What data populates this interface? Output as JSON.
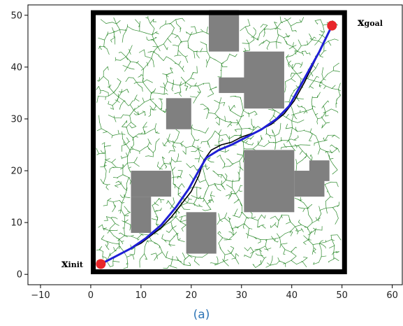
{
  "chart_data": {
    "type": "scatter",
    "title": "",
    "xlabel": "",
    "ylabel": "",
    "xlim": [
      -12.5,
      62
    ],
    "ylim": [
      -2,
      52
    ],
    "xticks": [
      -10,
      0,
      10,
      20,
      30,
      40,
      50,
      60
    ],
    "yticks": [
      0,
      10,
      20,
      30,
      40,
      50
    ],
    "boundary": {
      "x0": 0.5,
      "y0": 0.5,
      "x1": 50.5,
      "y1": 50.5
    },
    "obstacles": [
      {
        "x0": 23.5,
        "y0": 43,
        "x1": 29.5,
        "y1": 51
      },
      {
        "x0": 30.5,
        "y0": 32,
        "x1": 38.5,
        "y1": 43
      },
      {
        "x0": 25.5,
        "y0": 35,
        "x1": 31,
        "y1": 38
      },
      {
        "x0": 15,
        "y0": 28,
        "x1": 20,
        "y1": 34
      },
      {
        "x0": 8,
        "y0": 15,
        "x1": 16,
        "y1": 20
      },
      {
        "x0": 8,
        "y0": 8,
        "x1": 12,
        "y1": 15
      },
      {
        "x0": 30.5,
        "y0": 12,
        "x1": 40.5,
        "y1": 24
      },
      {
        "x0": 40.5,
        "y0": 15,
        "x1": 46.5,
        "y1": 20
      },
      {
        "x0": 43.5,
        "y0": 18,
        "x1": 47.5,
        "y1": 22
      },
      {
        "x0": 19,
        "y0": 4,
        "x1": 25,
        "y1": 12
      }
    ],
    "start": {
      "label_main": "x",
      "label_sub": "init",
      "x": 2,
      "y": 2
    },
    "goal": {
      "label_main": "x",
      "label_sub": "goal",
      "x": 48,
      "y": 48
    },
    "tree_path": [
      [
        2,
        2
      ],
      [
        6,
        4
      ],
      [
        10,
        6
      ],
      [
        12,
        7.5
      ],
      [
        14,
        9
      ],
      [
        16,
        11
      ],
      [
        18,
        13.5
      ],
      [
        20,
        16
      ],
      [
        21.5,
        19
      ],
      [
        22.5,
        22
      ],
      [
        24,
        24
      ],
      [
        26,
        25
      ],
      [
        28,
        25.5
      ],
      [
        30,
        26.5
      ],
      [
        33,
        27.5
      ],
      [
        36,
        29
      ],
      [
        38.5,
        31
      ],
      [
        40.5,
        33.5
      ],
      [
        42.5,
        37
      ],
      [
        44.5,
        41
      ],
      [
        46.5,
        45
      ],
      [
        48,
        48
      ]
    ],
    "smooth_path": [
      [
        2,
        2
      ],
      [
        5,
        3.5
      ],
      [
        8,
        5
      ],
      [
        11,
        7
      ],
      [
        14,
        9.5
      ],
      [
        17,
        13
      ],
      [
        19.5,
        16.5
      ],
      [
        21.5,
        20
      ],
      [
        23,
        22.5
      ],
      [
        25.5,
        24
      ],
      [
        28,
        25
      ],
      [
        31,
        26.5
      ],
      [
        34,
        28
      ],
      [
        37,
        30
      ],
      [
        39.5,
        32.5
      ],
      [
        41.5,
        36
      ],
      [
        43.5,
        39.5
      ],
      [
        45.5,
        43
      ],
      [
        47,
        46
      ],
      [
        48,
        48
      ]
    ],
    "colors": {
      "tree": "#2e8b2e",
      "tree_path": "#000000",
      "smooth_path": "#1f1fd6",
      "obstacle": "#808080",
      "boundary": "#000000",
      "endpoint": "#e8262a"
    }
  },
  "caption": "(a)"
}
